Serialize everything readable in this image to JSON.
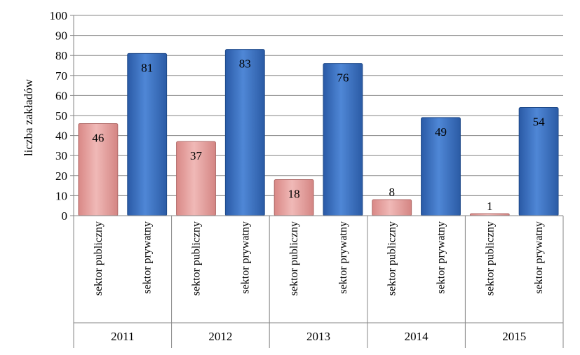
{
  "chart_data": {
    "type": "bar",
    "ylabel": "liczba zakładów",
    "ylim": [
      0,
      100
    ],
    "yticks": [
      0,
      10,
      20,
      30,
      40,
      50,
      60,
      70,
      80,
      90,
      100
    ],
    "grid": true,
    "legend": "none",
    "groups": [
      "2011",
      "2012",
      "2013",
      "2014",
      "2015"
    ],
    "categories": [
      "sektor publiczny",
      "sektor prywatny"
    ],
    "bars": [
      {
        "group": "2011",
        "category": "sektor publiczny",
        "value": 46
      },
      {
        "group": "2011",
        "category": "sektor prywatny",
        "value": 81
      },
      {
        "group": "2012",
        "category": "sektor publiczny",
        "value": 37
      },
      {
        "group": "2012",
        "category": "sektor prywatny",
        "value": 83
      },
      {
        "group": "2013",
        "category": "sektor publiczny",
        "value": 18
      },
      {
        "group": "2013",
        "category": "sektor prywatny",
        "value": 76
      },
      {
        "group": "2014",
        "category": "sektor publiczny",
        "value": 8
      },
      {
        "group": "2014",
        "category": "sektor prywatny",
        "value": 49
      },
      {
        "group": "2015",
        "category": "sektor publiczny",
        "value": 1
      },
      {
        "group": "2015",
        "category": "sektor prywatny",
        "value": 54
      }
    ],
    "colors": {
      "sektor publiczny": "#e6a3a1",
      "sektor prywatny": "#3d74c4"
    }
  }
}
